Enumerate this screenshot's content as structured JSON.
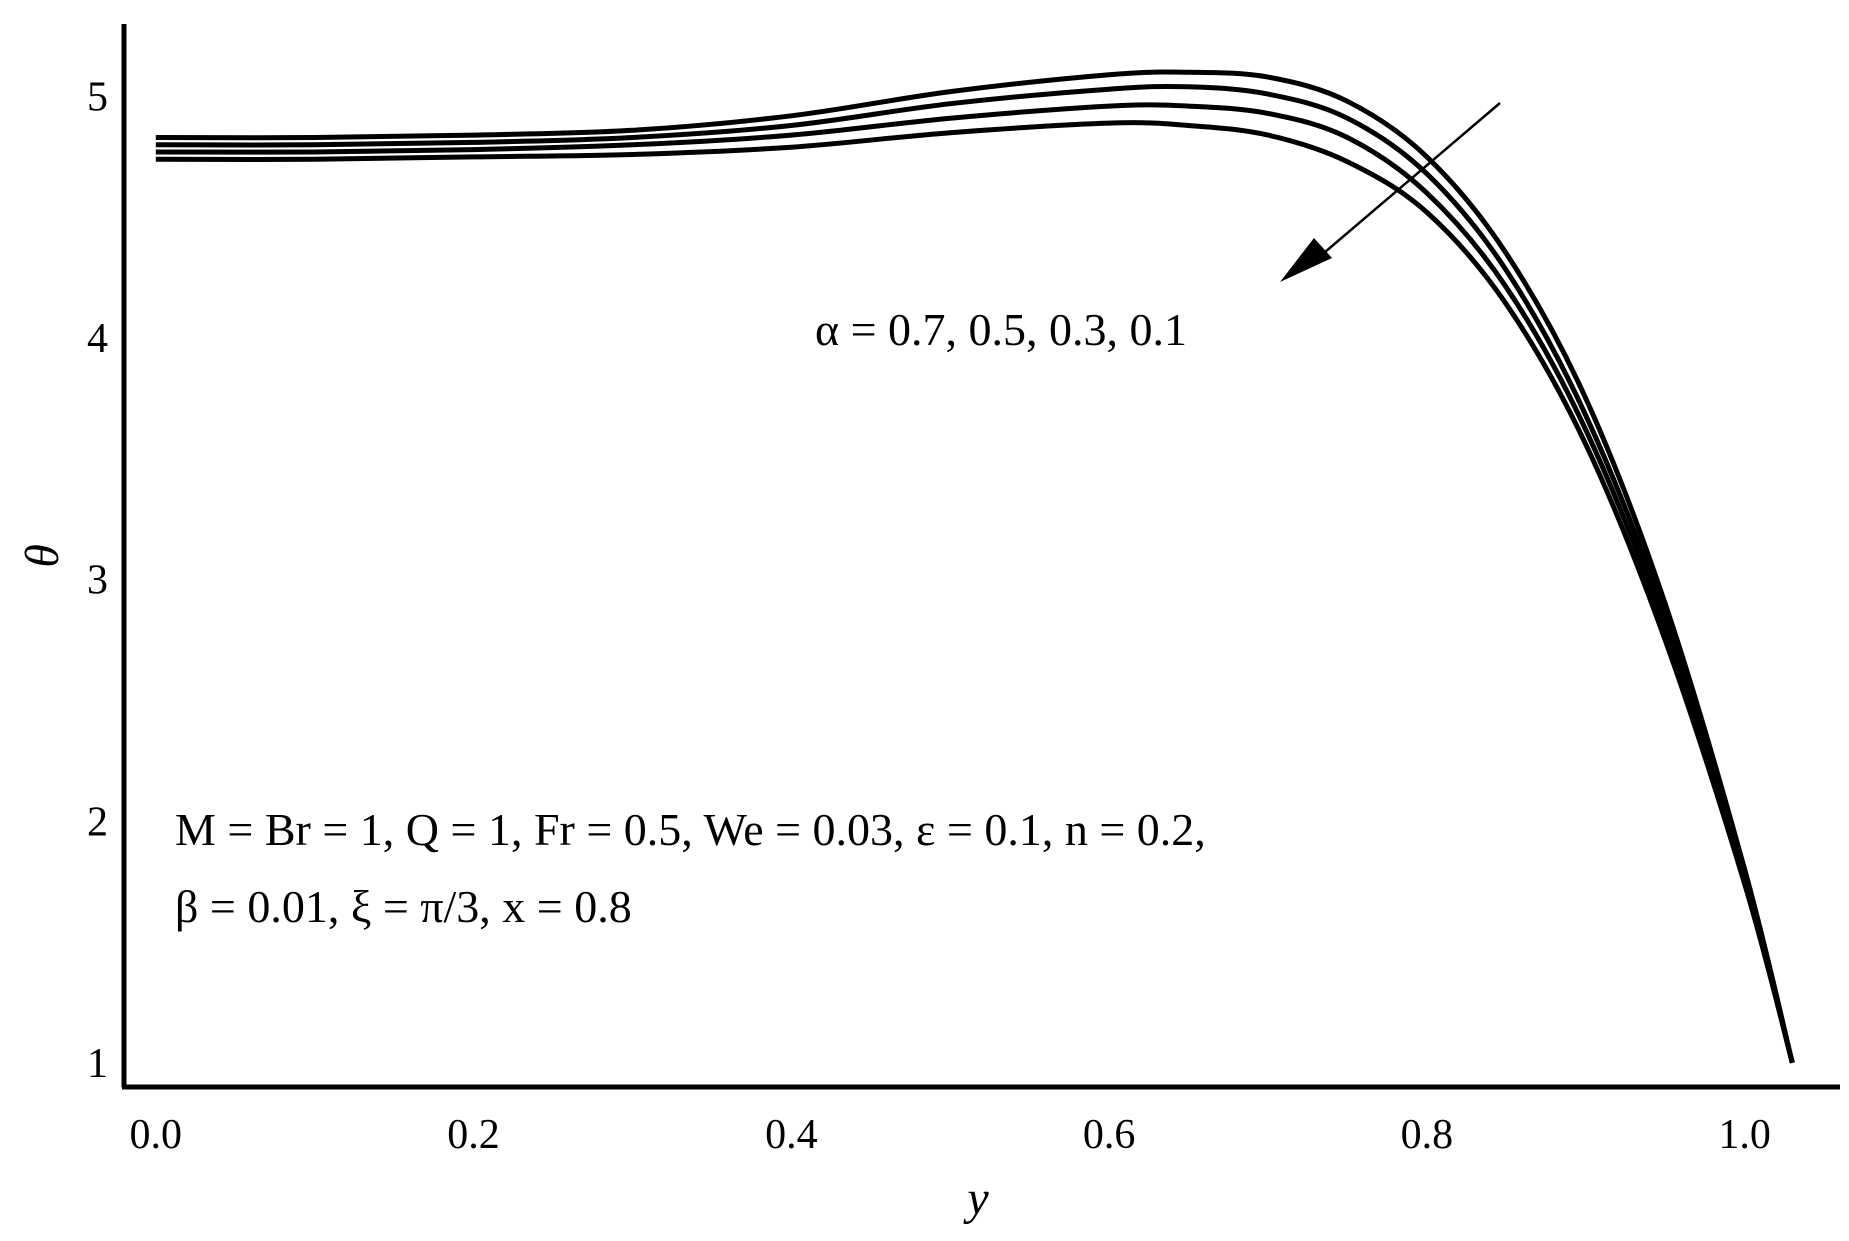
{
  "chart_data": {
    "type": "line",
    "xlabel": "y",
    "ylabel": "θ",
    "xlim": [
      -0.02,
      1.06
    ],
    "ylim": [
      0.9,
      5.3
    ],
    "grid": false,
    "legend": "none",
    "x_ticks": [
      "0.0",
      "0.2",
      "0.4",
      "0.6",
      "0.8",
      "1.0"
    ],
    "y_ticks": [
      "1",
      "2",
      "3",
      "4",
      "5"
    ],
    "line_color": "#000000",
    "annotations": {
      "alpha_label": "α = 0.7, 0.5, 0.3, 0.1",
      "params_line1": "M = Br = 1, Q = 1, Fr = 0.5, We = 0.03, ε = 0.1, n = 0.2,",
      "params_line2": "β = 0.01, ξ = π/3, x = 0.8"
    },
    "x": [
      0.0,
      0.1,
      0.2,
      0.3,
      0.4,
      0.5,
      0.6,
      0.65,
      0.7,
      0.75,
      0.8,
      0.85,
      0.9,
      0.95,
      1.0,
      1.03
    ],
    "series": [
      {
        "values": [
          4.83,
          4.83,
          4.84,
          4.86,
          4.92,
          5.02,
          5.09,
          5.1,
          5.08,
          4.98,
          4.75,
          4.35,
          3.75,
          2.9,
          1.8,
          1.0
        ]
      },
      {
        "values": [
          4.8,
          4.8,
          4.81,
          4.83,
          4.88,
          4.97,
          5.03,
          5.04,
          5.01,
          4.91,
          4.68,
          4.28,
          3.68,
          2.85,
          1.78,
          1.0
        ]
      },
      {
        "values": [
          4.77,
          4.77,
          4.78,
          4.8,
          4.84,
          4.91,
          4.96,
          4.96,
          4.93,
          4.83,
          4.6,
          4.21,
          3.62,
          2.8,
          1.76,
          1.0
        ]
      },
      {
        "values": [
          4.74,
          4.74,
          4.75,
          4.76,
          4.79,
          4.85,
          4.89,
          4.88,
          4.84,
          4.73,
          4.52,
          4.14,
          3.56,
          2.75,
          1.74,
          1.0
        ]
      }
    ]
  }
}
